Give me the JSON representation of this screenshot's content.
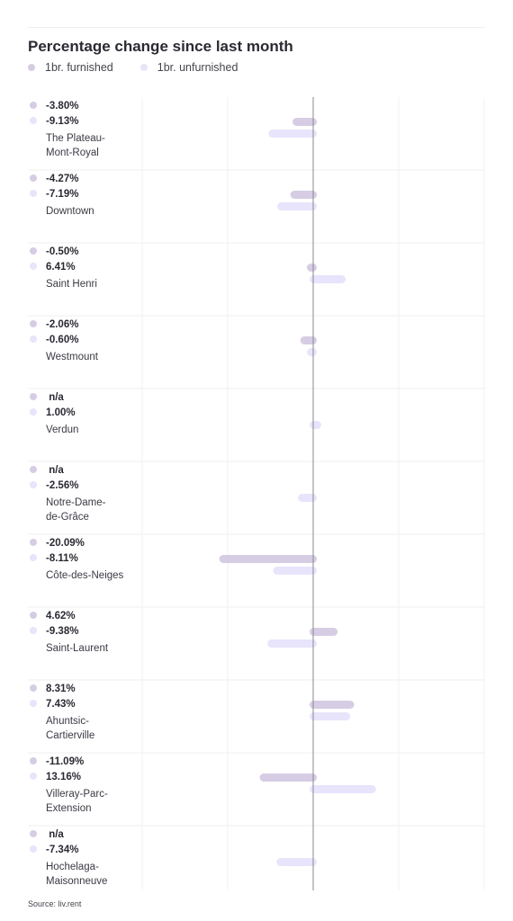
{
  "title": "Percentage change since last month",
  "source": "Source: liv.rent",
  "colors": {
    "furnished": "#d6cde4",
    "unfurnished": "#e7e4fb",
    "grid": "#efefef",
    "zero": "#8a8a92"
  },
  "chart_data": {
    "type": "bar",
    "orientation": "horizontal",
    "title": "Percentage change since last month",
    "legend": {
      "position": "top-left"
    },
    "grid": true,
    "xlim": [
      -25,
      25
    ],
    "categories": [
      "The Plateau-Mont-Royal",
      "Downtown",
      "Saint Henri",
      "Westmount",
      "Verdun",
      "Notre-Dame-de-Grâce",
      "Côte-des-Neiges",
      "Saint-Laurent",
      "Ahuntsic-Cartierville",
      "Villeray-Parc-Extension",
      "Hochelaga-Maisonneuve"
    ],
    "category_lines": [
      [
        "The Plateau-",
        "Mont-Royal"
      ],
      [
        "Downtown"
      ],
      [
        "Saint Henri"
      ],
      [
        "Westmount"
      ],
      [
        "Verdun"
      ],
      [
        "Notre-Dame-",
        "de-Grâce"
      ],
      [
        "Côte-des-Neiges"
      ],
      [
        "Saint-Laurent"
      ],
      [
        "Ahuntsic-",
        "Cartierville"
      ],
      [
        "Villeray-Parc-",
        "Extension"
      ],
      [
        "Hochelaga-",
        "Maisonneuve"
      ]
    ],
    "series": [
      {
        "name": "1br. furnished",
        "values": [
          -3.8,
          -4.27,
          -0.5,
          -2.06,
          null,
          null,
          -20.09,
          4.62,
          8.31,
          -11.09,
          null
        ],
        "labels": [
          "-3.80%",
          "-4.27%",
          "-0.50%",
          "-2.06%",
          "n/a",
          "n/a",
          "-20.09%",
          "4.62%",
          "8.31%",
          "-11.09%",
          "n/a"
        ]
      },
      {
        "name": "1br. unfurnished",
        "values": [
          -9.13,
          -7.19,
          6.41,
          -0.6,
          1.0,
          -2.56,
          -8.11,
          -9.38,
          7.43,
          13.16,
          -7.34
        ],
        "labels": [
          "-9.13%",
          "-7.19%",
          "6.41%",
          "-0.60%",
          "1.00%",
          "-2.56%",
          "-8.11%",
          "-9.38%",
          "7.43%",
          "13.16%",
          "-7.34%"
        ]
      }
    ]
  }
}
